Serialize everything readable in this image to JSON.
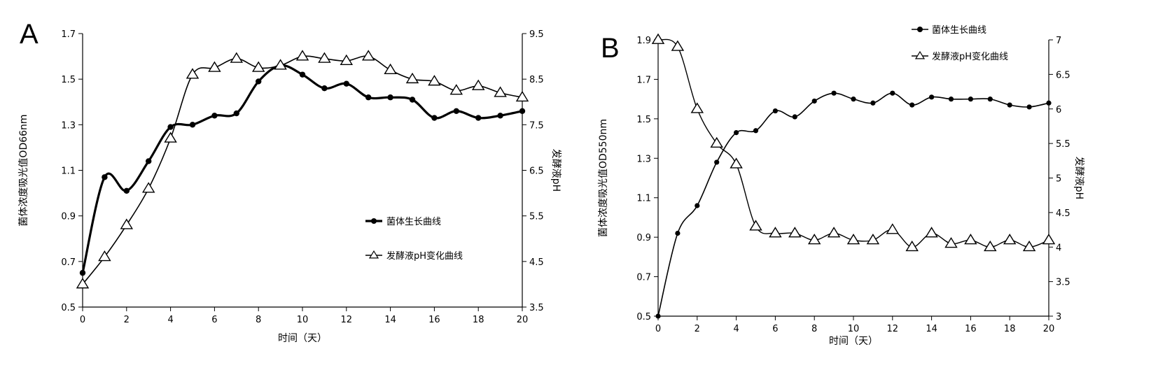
{
  "chart_data": [
    {
      "panel": "A",
      "type": "line",
      "x": [
        0,
        1,
        2,
        3,
        4,
        5,
        6,
        7,
        8,
        9,
        10,
        11,
        12,
        13,
        14,
        15,
        16,
        17,
        18,
        19,
        20
      ],
      "xlabel": "时间（天）",
      "ylabel_left": "菌体浓度吸光值OD66nm",
      "ylabel_right": "发酵液pH",
      "ylim_left": [
        0.5,
        1.7
      ],
      "ylim_right": [
        3.5,
        9.5
      ],
      "xlim": [
        0,
        20
      ],
      "yticks_left": [
        0.5,
        0.7,
        0.9,
        1.1,
        1.3,
        1.5,
        1.7
      ],
      "yticks_right": [
        3.5,
        4.5,
        5.5,
        6.5,
        7.5,
        8.5,
        9.5
      ],
      "xticks": [
        0,
        2,
        4,
        6,
        8,
        10,
        12,
        14,
        16,
        18,
        20
      ],
      "legend_placement": "center-right",
      "grid": false,
      "series": [
        {
          "name": "菌体生长曲线",
          "axis": "left",
          "marker": "filled-circle",
          "values": [
            0.65,
            1.07,
            1.01,
            1.14,
            1.29,
            1.3,
            1.34,
            1.35,
            1.49,
            1.56,
            1.52,
            1.46,
            1.48,
            1.42,
            1.42,
            1.41,
            1.33,
            1.36,
            1.33,
            1.34,
            1.36
          ]
        },
        {
          "name": "发酵液pH变化曲线",
          "axis": "right",
          "marker": "open-triangle",
          "values": [
            4.0,
            4.6,
            5.3,
            6.1,
            7.2,
            8.6,
            8.75,
            8.95,
            8.75,
            8.8,
            9.0,
            8.95,
            8.9,
            9.0,
            8.7,
            8.5,
            8.45,
            8.25,
            8.35,
            8.2,
            8.1
          ]
        }
      ]
    },
    {
      "panel": "B",
      "type": "line",
      "x": [
        0,
        1,
        2,
        3,
        4,
        5,
        6,
        7,
        8,
        9,
        10,
        11,
        12,
        13,
        14,
        15,
        16,
        17,
        18,
        19,
        20
      ],
      "xlabel": "时间（天）",
      "ylabel_left": "菌体浓度吸光值OD550nm",
      "ylabel_right": "发酵液pH",
      "ylim_left": [
        0.5,
        1.9
      ],
      "ylim_right": [
        3,
        7
      ],
      "xlim": [
        0,
        20
      ],
      "yticks_left": [
        0.5,
        0.7,
        0.9,
        1.1,
        1.3,
        1.5,
        1.7,
        1.9
      ],
      "yticks_right": [
        3,
        3.5,
        4,
        4.5,
        5,
        5.5,
        6,
        6.5,
        7
      ],
      "xticks": [
        0,
        2,
        4,
        6,
        8,
        10,
        12,
        14,
        16,
        18,
        20
      ],
      "legend_placement": "top-right",
      "grid": false,
      "series": [
        {
          "name": "菌体生长曲线",
          "axis": "left",
          "marker": "filled-circle",
          "values": [
            0.5,
            0.92,
            1.06,
            1.28,
            1.43,
            1.44,
            1.54,
            1.51,
            1.59,
            1.63,
            1.6,
            1.58,
            1.63,
            1.57,
            1.61,
            1.6,
            1.6,
            1.6,
            1.57,
            1.56,
            1.58
          ]
        },
        {
          "name": "发酵液pH变化曲线",
          "axis": "right",
          "marker": "open-triangle",
          "values": [
            7.0,
            6.9,
            6.0,
            5.5,
            5.2,
            4.3,
            4.2,
            4.2,
            4.1,
            4.2,
            4.1,
            4.1,
            4.25,
            4.0,
            4.2,
            4.05,
            4.1,
            4.0,
            4.1,
            4.0,
            4.1
          ]
        }
      ]
    }
  ]
}
